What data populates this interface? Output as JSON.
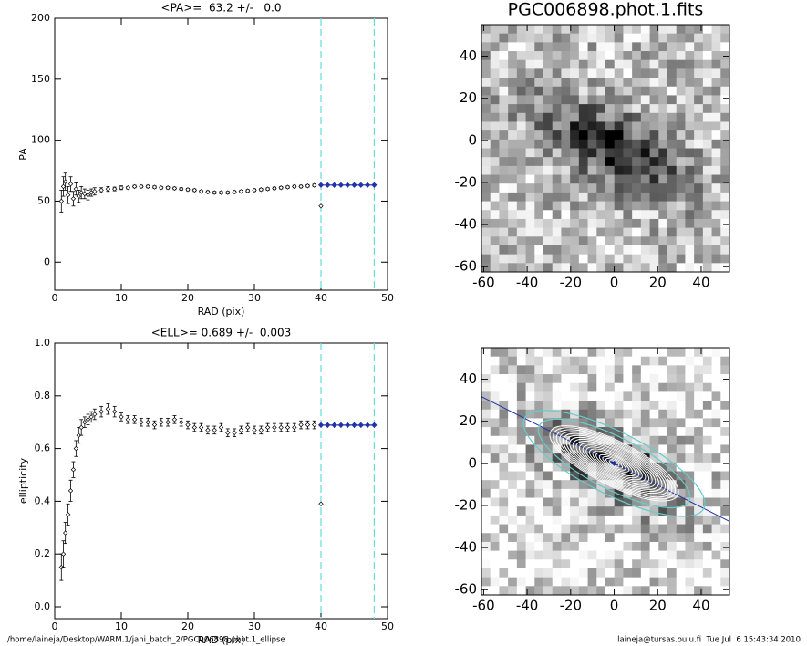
{
  "chart_data": [
    {
      "type": "scatter",
      "title": "<PA>=  63.2 +/-   0.0",
      "xlabel": "RAD (pix)",
      "ylabel": "PA",
      "xlim": [
        0,
        50
      ],
      "ylim": [
        -23,
        200
      ],
      "xticks": [
        0,
        10,
        20,
        30,
        40,
        50
      ],
      "yticks": [
        0,
        50,
        100,
        150,
        200
      ],
      "x": [
        1.0,
        1.3,
        1.6,
        2.0,
        2.4,
        2.8,
        3.2,
        3.6,
        4.0,
        4.5,
        5,
        5.5,
        6,
        7,
        8,
        9,
        10,
        11,
        12,
        13,
        14,
        15,
        16,
        17,
        18,
        19,
        20,
        21,
        22,
        23,
        24,
        25,
        26,
        27,
        28,
        29,
        30,
        31,
        32,
        33,
        34,
        35,
        36,
        37,
        38,
        39
      ],
      "values": [
        50,
        62,
        66,
        55,
        64,
        52,
        60,
        54,
        57,
        56,
        55,
        57,
        58,
        59,
        60,
        60,
        61,
        61,
        62,
        62,
        62,
        61.5,
        61,
        61,
        60.5,
        60,
        59.5,
        59,
        58,
        57.5,
        57,
        57,
        57,
        57.5,
        58,
        58.5,
        59,
        59.5,
        60,
        60.5,
        61,
        61.5,
        62,
        62,
        62.5,
        63
      ],
      "errors": [
        9,
        8,
        7,
        7,
        6,
        6,
        5,
        5,
        5,
        4,
        4,
        3,
        3,
        2,
        2,
        1.5,
        1.5,
        1,
        1,
        1,
        1,
        1,
        1,
        1,
        1,
        1,
        1,
        1,
        1,
        1,
        1,
        1,
        1,
        1,
        1,
        1,
        1,
        1,
        1,
        1,
        1,
        1,
        1,
        1,
        1,
        1
      ],
      "color": "#000000",
      "fit": {
        "x": [
          40,
          41,
          42,
          43,
          44,
          45,
          46,
          47,
          48
        ],
        "values": [
          63.2,
          63.2,
          63.2,
          63.2,
          63.2,
          63.2,
          63.2,
          63.2,
          63.2
        ],
        "color": "#2233aa"
      },
      "rejected": {
        "x": [
          40
        ],
        "values": [
          46
        ]
      },
      "mean": 63.2,
      "vlines": [
        40,
        48
      ],
      "vline_color": "#66dddd"
    },
    {
      "type": "image",
      "title": "PGC006898.phot.1.fits",
      "xlim": [
        -61,
        53
      ],
      "ylim": [
        -62.5,
        55
      ],
      "xticks": [
        -60,
        -40,
        -20,
        0,
        20,
        40
      ],
      "yticks": [
        -60,
        -40,
        -20,
        0,
        20,
        40
      ]
    },
    {
      "type": "scatter",
      "title": "<ELL>= 0.689 +/-  0.003",
      "xlabel": "RAD (pix)",
      "ylabel": "ellipticity",
      "xlim": [
        0,
        50
      ],
      "ylim": [
        -0.045,
        1.0
      ],
      "xticks": [
        0,
        10,
        20,
        30,
        40,
        50
      ],
      "yticks": [
        {
          "value": 0,
          "label": "0.0"
        },
        0.2,
        0.4,
        0.6,
        0.8,
        {
          "value": 1,
          "label": "1.0"
        }
      ],
      "x": [
        1.0,
        1.3,
        1.6,
        2.0,
        2.4,
        2.8,
        3.2,
        3.6,
        4.0,
        4.5,
        5,
        5.5,
        6,
        7,
        8,
        9,
        10,
        11,
        12,
        13,
        14,
        15,
        16,
        17,
        18,
        19,
        20,
        21,
        22,
        23,
        24,
        25,
        26,
        27,
        28,
        29,
        30,
        31,
        32,
        33,
        34,
        35,
        36,
        37,
        38,
        39
      ],
      "values": [
        0.15,
        0.2,
        0.28,
        0.35,
        0.44,
        0.52,
        0.6,
        0.65,
        0.68,
        0.7,
        0.71,
        0.72,
        0.73,
        0.74,
        0.75,
        0.74,
        0.72,
        0.71,
        0.71,
        0.7,
        0.7,
        0.69,
        0.7,
        0.7,
        0.71,
        0.7,
        0.69,
        0.68,
        0.68,
        0.67,
        0.67,
        0.68,
        0.66,
        0.66,
        0.67,
        0.68,
        0.67,
        0.67,
        0.68,
        0.68,
        0.68,
        0.68,
        0.68,
        0.69,
        0.69,
        0.69
      ],
      "errors": [
        0.05,
        0.05,
        0.04,
        0.04,
        0.04,
        0.03,
        0.03,
        0.03,
        0.03,
        0.02,
        0.02,
        0.02,
        0.02,
        0.02,
        0.02,
        0.02,
        0.015,
        0.015,
        0.015,
        0.015,
        0.015,
        0.015,
        0.015,
        0.015,
        0.015,
        0.015,
        0.015,
        0.015,
        0.015,
        0.015,
        0.015,
        0.015,
        0.015,
        0.015,
        0.015,
        0.015,
        0.015,
        0.015,
        0.015,
        0.015,
        0.015,
        0.015,
        0.015,
        0.015,
        0.015,
        0.015
      ],
      "color": "#000000",
      "fit": {
        "x": [
          40,
          41,
          42,
          43,
          44,
          45,
          46,
          47,
          48
        ],
        "values": [
          0.689,
          0.689,
          0.689,
          0.689,
          0.689,
          0.689,
          0.689,
          0.689,
          0.689
        ],
        "errors": [
          0.01,
          0.01,
          0.01,
          0.01,
          0.01,
          0.01,
          0.01,
          0.01,
          0.01
        ],
        "color": "#2233aa"
      },
      "rejected": {
        "x": [
          40
        ],
        "values": [
          0.39
        ]
      },
      "mean": 0.689,
      "vlines": [
        40,
        48
      ],
      "vline_color": "#66dddd"
    },
    {
      "type": "image",
      "xlim": [
        -61,
        53
      ],
      "ylim": [
        -62.5,
        55
      ],
      "xticks": [
        -60,
        -40,
        -20,
        0,
        20,
        40
      ],
      "yticks": [
        -60,
        -40,
        -20,
        0,
        20,
        40
      ]
    }
  ],
  "footer": {
    "left": "/home/laineja/Desktop/WARM.1/jani_batch_2/PGC006898.phot.1_ellipse",
    "right": "laineja@tursas.oulu.fi  Tue Jul  6 15:43:34 2010"
  }
}
